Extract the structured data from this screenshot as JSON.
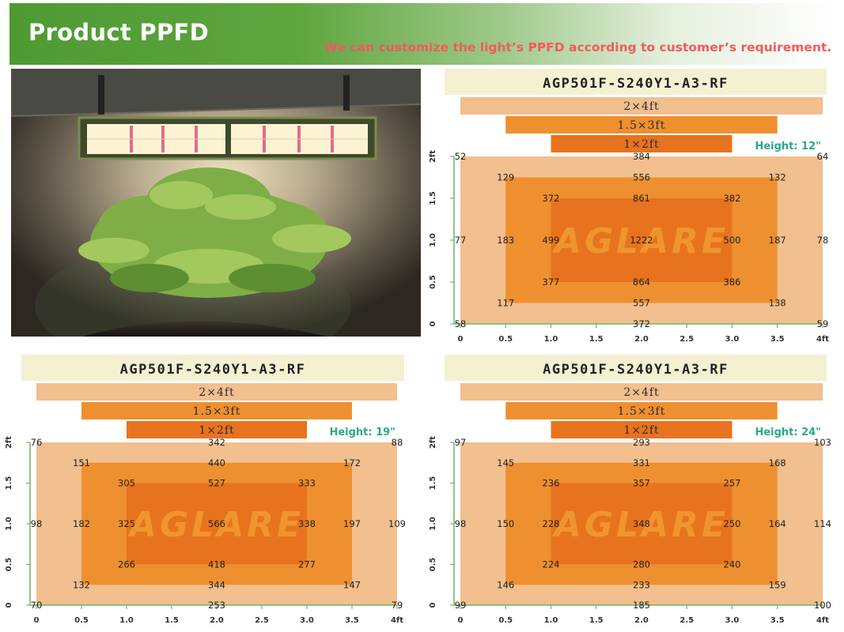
{
  "header": {
    "title": "Product PPFD",
    "subtitle": "We can customize the light’s PPFD according to customer’s requirement."
  },
  "colors": {
    "banner_green": "#5ea53e",
    "subtitle_red": "#f25a5a",
    "zone_outer": "#f2bf8e",
    "zone_middle": "#ee9030",
    "zone_inner": "#e8731e",
    "model_bar": "#f4f0d2",
    "height_label": "#2aa88a",
    "watermark": "#f6b23c"
  },
  "photo": {
    "icon": "grow-light-over-plant-photo"
  },
  "chart_data": [
    {
      "type": "heatmap",
      "model": "AGP501F-S240Y1-A3-RF",
      "height_label": "Height: 12\"",
      "coverage_labels": [
        "2×4ft",
        "1.5×3ft",
        "1×2ft"
      ],
      "watermark": "AGLARE",
      "x_ticks": [
        "0",
        "0.5",
        "1.0",
        "1.5",
        "2.0",
        "2.5",
        "3.0",
        "3.5",
        "4ft"
      ],
      "y_ticks": [
        "0",
        "0.5",
        "1.0",
        "1.5",
        "2ft"
      ],
      "xlim": [
        0,
        4
      ],
      "ylim": [
        0,
        2
      ],
      "points": [
        {
          "x": 0,
          "y": 2,
          "v": 52
        },
        {
          "x": 2,
          "y": 2,
          "v": 384
        },
        {
          "x": 4,
          "y": 2,
          "v": 64
        },
        {
          "x": 0.5,
          "y": 1.75,
          "v": 129
        },
        {
          "x": 2,
          "y": 1.75,
          "v": 556
        },
        {
          "x": 3.5,
          "y": 1.75,
          "v": 132
        },
        {
          "x": 1,
          "y": 1.5,
          "v": 372
        },
        {
          "x": 2,
          "y": 1.5,
          "v": 861
        },
        {
          "x": 3,
          "y": 1.5,
          "v": 382
        },
        {
          "x": 0,
          "y": 1,
          "v": 77
        },
        {
          "x": 0.5,
          "y": 1,
          "v": 183
        },
        {
          "x": 1,
          "y": 1,
          "v": 499
        },
        {
          "x": 2,
          "y": 1,
          "v": 1222
        },
        {
          "x": 3,
          "y": 1,
          "v": 500
        },
        {
          "x": 3.5,
          "y": 1,
          "v": 187
        },
        {
          "x": 4,
          "y": 1,
          "v": 78
        },
        {
          "x": 1,
          "y": 0.5,
          "v": 377
        },
        {
          "x": 2,
          "y": 0.5,
          "v": 864
        },
        {
          "x": 3,
          "y": 0.5,
          "v": 386
        },
        {
          "x": 0.5,
          "y": 0.25,
          "v": 117
        },
        {
          "x": 2,
          "y": 0.25,
          "v": 557
        },
        {
          "x": 3.5,
          "y": 0.25,
          "v": 138
        },
        {
          "x": 0,
          "y": 0,
          "v": 58
        },
        {
          "x": 2,
          "y": 0,
          "v": 372
        },
        {
          "x": 4,
          "y": 0,
          "v": 59
        }
      ]
    },
    {
      "type": "heatmap",
      "model": "AGP501F-S240Y1-A3-RF",
      "height_label": "Height: 19\"",
      "coverage_labels": [
        "2×4ft",
        "1.5×3ft",
        "1×2ft"
      ],
      "watermark": "AGLARE",
      "x_ticks": [
        "0",
        "0.5",
        "1.0",
        "1.5",
        "2.0",
        "2.5",
        "3.0",
        "3.5",
        "4ft"
      ],
      "y_ticks": [
        "0",
        "0.5",
        "1.0",
        "1.5",
        "2ft"
      ],
      "xlim": [
        0,
        4
      ],
      "ylim": [
        0,
        2
      ],
      "points": [
        {
          "x": 0,
          "y": 2,
          "v": 76
        },
        {
          "x": 2,
          "y": 2,
          "v": 342
        },
        {
          "x": 4,
          "y": 2,
          "v": 88
        },
        {
          "x": 0.5,
          "y": 1.75,
          "v": 151
        },
        {
          "x": 2,
          "y": 1.75,
          "v": 440
        },
        {
          "x": 3.5,
          "y": 1.75,
          "v": 172
        },
        {
          "x": 1,
          "y": 1.5,
          "v": 305
        },
        {
          "x": 2,
          "y": 1.5,
          "v": 527
        },
        {
          "x": 3,
          "y": 1.5,
          "v": 333
        },
        {
          "x": 0,
          "y": 1,
          "v": 98
        },
        {
          "x": 0.5,
          "y": 1,
          "v": 182
        },
        {
          "x": 1,
          "y": 1,
          "v": 325
        },
        {
          "x": 2,
          "y": 1,
          "v": 566
        },
        {
          "x": 3,
          "y": 1,
          "v": 338
        },
        {
          "x": 3.5,
          "y": 1,
          "v": 197
        },
        {
          "x": 4,
          "y": 1,
          "v": 109
        },
        {
          "x": 1,
          "y": 0.5,
          "v": 266
        },
        {
          "x": 2,
          "y": 0.5,
          "v": 418
        },
        {
          "x": 3,
          "y": 0.5,
          "v": 277
        },
        {
          "x": 0.5,
          "y": 0.25,
          "v": 132
        },
        {
          "x": 2,
          "y": 0.25,
          "v": 344
        },
        {
          "x": 3.5,
          "y": 0.25,
          "v": 147
        },
        {
          "x": 0,
          "y": 0,
          "v": 70
        },
        {
          "x": 2,
          "y": 0,
          "v": 253
        },
        {
          "x": 4,
          "y": 0,
          "v": 79
        }
      ]
    },
    {
      "type": "heatmap",
      "model": "AGP501F-S240Y1-A3-RF",
      "height_label": "Height: 24\"",
      "coverage_labels": [
        "2×4ft",
        "1.5×3ft",
        "1×2ft"
      ],
      "watermark": "AGLARE",
      "x_ticks": [
        "0",
        "0.5",
        "1.0",
        "1.5",
        "2.0",
        "2.5",
        "3.0",
        "3.5",
        "4ft"
      ],
      "y_ticks": [
        "0",
        "0.5",
        "1.0",
        "1.5",
        "2ft"
      ],
      "xlim": [
        0,
        4
      ],
      "ylim": [
        0,
        2
      ],
      "points": [
        {
          "x": 0,
          "y": 2,
          "v": 97
        },
        {
          "x": 2,
          "y": 2,
          "v": 293
        },
        {
          "x": 4,
          "y": 2,
          "v": 103
        },
        {
          "x": 0.5,
          "y": 1.75,
          "v": 145
        },
        {
          "x": 2,
          "y": 1.75,
          "v": 331
        },
        {
          "x": 3.5,
          "y": 1.75,
          "v": 168
        },
        {
          "x": 1,
          "y": 1.5,
          "v": 236
        },
        {
          "x": 2,
          "y": 1.5,
          "v": 357
        },
        {
          "x": 3,
          "y": 1.5,
          "v": 257
        },
        {
          "x": 0,
          "y": 1,
          "v": 98
        },
        {
          "x": 0.5,
          "y": 1,
          "v": 150
        },
        {
          "x": 1,
          "y": 1,
          "v": 228
        },
        {
          "x": 2,
          "y": 1,
          "v": 348
        },
        {
          "x": 3,
          "y": 1,
          "v": 250
        },
        {
          "x": 3.5,
          "y": 1,
          "v": 164
        },
        {
          "x": 4,
          "y": 1,
          "v": 114
        },
        {
          "x": 1,
          "y": 0.5,
          "v": 224
        },
        {
          "x": 2,
          "y": 0.5,
          "v": 280
        },
        {
          "x": 3,
          "y": 0.5,
          "v": 240
        },
        {
          "x": 0.5,
          "y": 0.25,
          "v": 146
        },
        {
          "x": 2,
          "y": 0.25,
          "v": 233
        },
        {
          "x": 3.5,
          "y": 0.25,
          "v": 159
        },
        {
          "x": 0,
          "y": 0,
          "v": 99
        },
        {
          "x": 2,
          "y": 0,
          "v": 185
        },
        {
          "x": 4,
          "y": 0,
          "v": 100
        }
      ]
    }
  ]
}
